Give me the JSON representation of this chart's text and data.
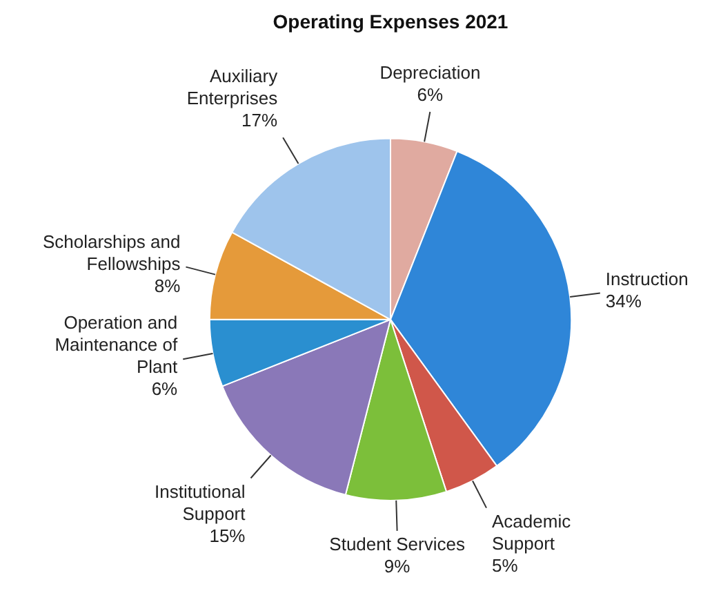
{
  "chart_data": {
    "type": "pie",
    "title": "Operating Expenses 2021",
    "categories": [
      "Depreciation",
      "Instruction",
      "Academic Support",
      "Student Services",
      "Institutional Support",
      "Operation and Maintenance of Plant",
      "Scholarships and Fellowships",
      "Auxiliary Enterprises"
    ],
    "values": [
      6,
      34,
      5,
      9,
      15,
      6,
      8,
      17
    ],
    "colors": [
      "#e0aaa0",
      "#2f86d8",
      "#d0574a",
      "#7cbf3a",
      "#8a78b8",
      "#2a8fd0",
      "#e59a3a",
      "#9ec4ec"
    ],
    "value_labels": [
      "6%",
      "34%",
      "5%",
      "9%",
      "15%",
      "6%",
      "8%",
      "17%"
    ],
    "legend": false
  }
}
